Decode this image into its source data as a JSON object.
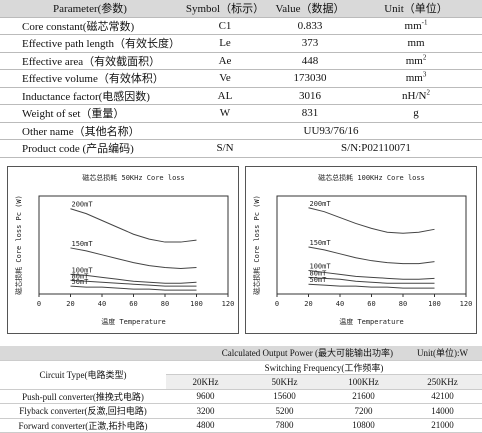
{
  "params_table": {
    "header": [
      "Parameter(参数)",
      "Symbol（标示）",
      "Value（数据）",
      "Unit（单位）"
    ],
    "rows": [
      {
        "parameter": "Core constant(磁芯常数)",
        "symbol": "C1",
        "value": "0.833",
        "unit": "mm",
        "unit_sup": "-1"
      },
      {
        "parameter": "Effective path length（有效长度）",
        "symbol": "Le",
        "value": "373",
        "unit": "mm"
      },
      {
        "parameter": "Effective area（有效截面积）",
        "symbol": "Ae",
        "value": "448",
        "unit": "mm",
        "unit_sup": "2"
      },
      {
        "parameter": "Effective volume（有效体积）",
        "symbol": "Ve",
        "value": "173030",
        "unit": "mm",
        "unit_sup": "3"
      },
      {
        "parameter": "Inductance factor(电感因数)",
        "symbol": "AL",
        "value": "3016",
        "unit": "nH/N",
        "unit_sup": "2"
      },
      {
        "parameter": "Weight of set（重量）",
        "symbol": "W",
        "value": "831",
        "unit": "g"
      },
      {
        "parameter": "Other name（其他名称）",
        "value": "UU93/76/16"
      },
      {
        "parameter": "Product code (产品编码)",
        "symbol": "S/N",
        "value": "S/N:P02110071"
      }
    ]
  },
  "chart_data": [
    {
      "type": "line",
      "title": "磁芯总损耗 50KHz Core loss",
      "x_label": "温度 Temperature",
      "y_label": "磁芯损耗 Core loss Pc (W)",
      "x": [
        20,
        30,
        40,
        50,
        60,
        70,
        80,
        90,
        100
      ],
      "xlim": [
        0,
        120
      ],
      "xticks": [
        0,
        20,
        40,
        60,
        80,
        100,
        120
      ],
      "ylim": [
        0,
        100
      ],
      "series": [
        {
          "name": "200mT",
          "color": "#444",
          "values": [
            87,
            82,
            75,
            68,
            61,
            56,
            53,
            53,
            55
          ]
        },
        {
          "name": "150mT",
          "color": "#444",
          "values": [
            47,
            44,
            40,
            36,
            32,
            29,
            27,
            26,
            27
          ]
        },
        {
          "name": "100mT",
          "color": "#444",
          "values": [
            20,
            19,
            17,
            15,
            13,
            12,
            11,
            11,
            12
          ]
        },
        {
          "name": "80mT",
          "color": "#444",
          "values": [
            14,
            13,
            12,
            11,
            10,
            9,
            8,
            8,
            8
          ]
        },
        {
          "name": "50mT",
          "color": "#444",
          "values": [
            8,
            7,
            7,
            6,
            5,
            5,
            4,
            4,
            4
          ]
        }
      ]
    },
    {
      "type": "line",
      "title": "磁芯总损耗 100KHz Core loss",
      "x_label": "温度 Temperature",
      "y_label": "磁芯损耗 Core loss Pc (W)",
      "x": [
        20,
        30,
        40,
        50,
        60,
        70,
        80,
        90,
        100
      ],
      "xlim": [
        0,
        120
      ],
      "xticks": [
        0,
        20,
        40,
        60,
        80,
        100,
        120
      ],
      "ylim": [
        0,
        100
      ],
      "series": [
        {
          "name": "200mT",
          "color": "#444",
          "values": [
            88,
            84,
            78,
            72,
            67,
            63,
            62,
            63,
            66
          ]
        },
        {
          "name": "150mT",
          "color": "#444",
          "values": [
            48,
            45,
            41,
            37,
            34,
            32,
            31,
            31,
            33
          ]
        },
        {
          "name": "100mT",
          "color": "#444",
          "values": [
            24,
            22,
            20,
            18,
            17,
            16,
            15,
            15,
            16
          ]
        },
        {
          "name": "80mT",
          "color": "#444",
          "values": [
            17,
            16,
            15,
            13,
            12,
            11,
            11,
            11,
            11
          ]
        },
        {
          "name": "50mT",
          "color": "#444",
          "values": [
            10,
            9,
            8,
            8,
            7,
            7,
            6,
            6,
            6
          ]
        }
      ]
    }
  ],
  "power_table": {
    "title": "Calculated Output Power (最大可能输出功率)",
    "unit": "Unit(单位):W",
    "circuit_header": "Circuit Type(电路类型)",
    "frequency_header": "Switching Frequency(工作频率)",
    "frequencies": [
      "20KHz",
      "50KHz",
      "100KHz",
      "250KHz"
    ],
    "rows": [
      {
        "circuit": "Push-pull converter(推挽式电路)",
        "values": [
          9600,
          15600,
          21600,
          42100
        ]
      },
      {
        "circuit": "Flyback converter(反激,回扫电路)",
        "values": [
          3200,
          5200,
          7200,
          14000
        ]
      },
      {
        "circuit": "Forward converter(正激,拓扑电路)",
        "values": [
          4800,
          7800,
          10800,
          21000
        ]
      }
    ]
  }
}
